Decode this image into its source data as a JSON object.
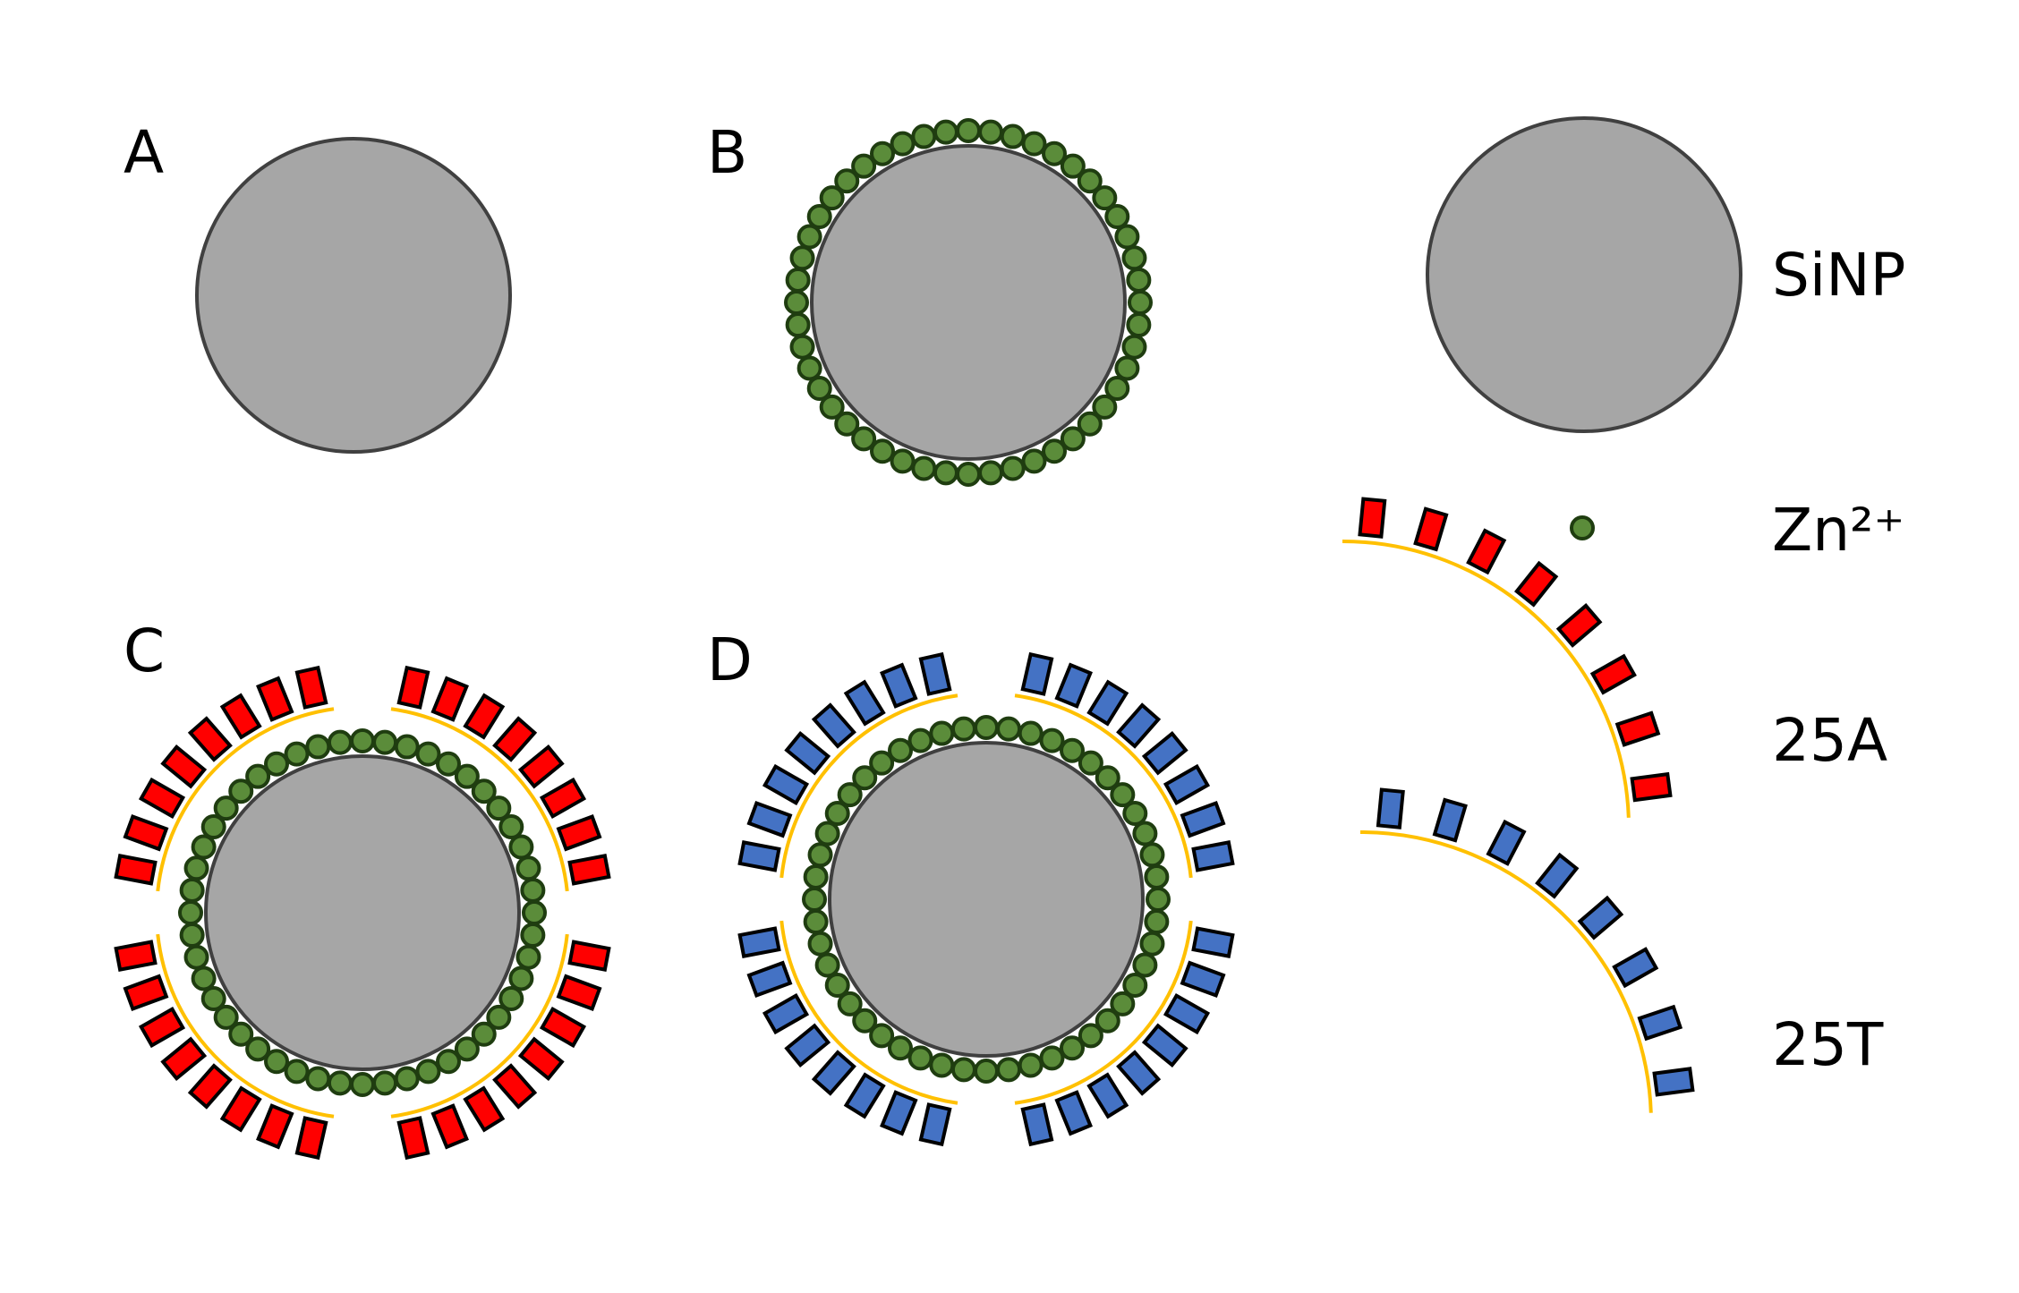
{
  "panels": {
    "a": {
      "label": "A"
    },
    "b": {
      "label": "B"
    },
    "c": {
      "label": "C",
      "strand": "25A"
    },
    "d": {
      "label": "D",
      "strand": "25T"
    }
  },
  "legend": {
    "sinp": "SiNP",
    "zn": "Zn²⁺",
    "strand_a": "25A",
    "strand_t": "25T"
  },
  "colors": {
    "sinp_fill": "#a6a6a6",
    "sinp_stroke": "#404040",
    "zn_fill": "#5b8c3a",
    "zn_stroke": "#1f3d10",
    "strand_25A_fill": "#ff0000",
    "strand_25T_fill": "#4472c4",
    "backbone": "#ffc000",
    "block_stroke": "#000000"
  }
}
